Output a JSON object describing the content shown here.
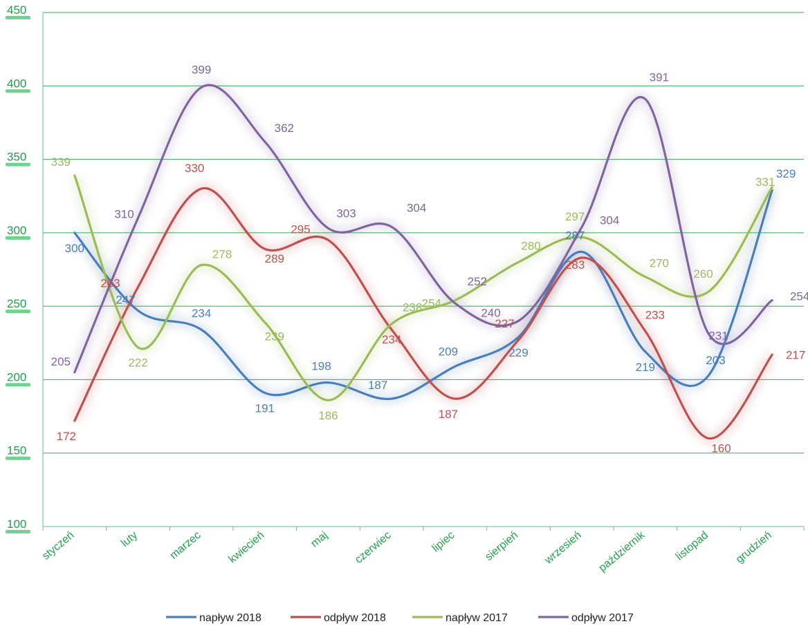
{
  "chart_data": {
    "type": "line",
    "categories": [
      "styczeń",
      "luty",
      "marzec",
      "kwiecień",
      "maj",
      "czerwiec",
      "lipiec",
      "sierpień",
      "wrzesień",
      "październik",
      "listopad",
      "grudzień"
    ],
    "ylim": [
      100,
      450
    ],
    "yticks": [
      100,
      150,
      200,
      250,
      300,
      350,
      400,
      450
    ],
    "grid": true,
    "legend_position": "bottom",
    "series": [
      {
        "name": "napływ 2018",
        "color": "#4a7ebb",
        "values": [
          300,
          247,
          234,
          191,
          198,
          187,
          209,
          229,
          287,
          219,
          203,
          329
        ]
      },
      {
        "name": "odpływ 2018",
        "color": "#c0504d",
        "values": [
          172,
          263,
          330,
          289,
          295,
          234,
          187,
          227,
          283,
          233,
          160,
          217
        ]
      },
      {
        "name": "napływ 2017",
        "color": "#9bbb59",
        "values": [
          339,
          222,
          278,
          239,
          186,
          238,
          254,
          280,
          297,
          270,
          260,
          331
        ]
      },
      {
        "name": "odpływ 2017",
        "color": "#8064a2",
        "values": [
          205,
          310,
          399,
          362,
          303,
          304,
          252,
          240,
          304,
          391,
          231,
          254
        ]
      }
    ]
  }
}
